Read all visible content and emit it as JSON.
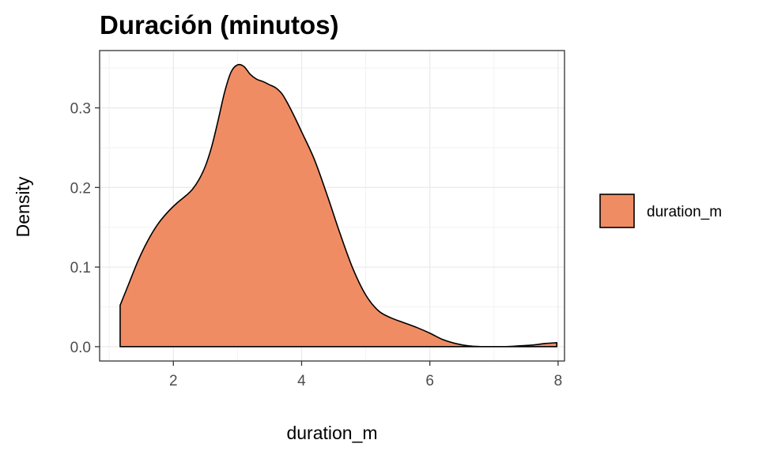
{
  "chart_data": {
    "type": "area",
    "title": "Duración (minutos)",
    "xlabel": "duration_m",
    "ylabel": "Density",
    "xlim": [
      0.85,
      8.1
    ],
    "ylim": [
      -0.018,
      0.372
    ],
    "x_ticks": [
      2,
      4,
      6,
      8
    ],
    "x_tick_labels": [
      "2",
      "4",
      "6",
      "8"
    ],
    "y_ticks": [
      0.0,
      0.1,
      0.2,
      0.3
    ],
    "y_tick_labels": [
      "0.0",
      "0.1",
      "0.2",
      "0.3"
    ],
    "grid": true,
    "legend_position": "right",
    "series": [
      {
        "name": "duration_m",
        "fill": "#F08C64",
        "stroke": "#000000",
        "x": [
          1.17,
          1.3,
          1.45,
          1.6,
          1.75,
          1.9,
          2.05,
          2.2,
          2.3,
          2.4,
          2.5,
          2.6,
          2.7,
          2.8,
          2.9,
          3.0,
          3.1,
          3.2,
          3.3,
          3.4,
          3.5,
          3.6,
          3.7,
          3.8,
          3.9,
          4.0,
          4.2,
          4.4,
          4.6,
          4.8,
          5.0,
          5.2,
          5.4,
          5.6,
          5.8,
          6.0,
          6.2,
          6.4,
          6.6,
          6.8,
          7.0,
          7.2,
          7.4,
          7.6,
          7.8,
          7.98
        ],
        "density": [
          0.052,
          0.078,
          0.108,
          0.133,
          0.153,
          0.168,
          0.18,
          0.19,
          0.198,
          0.21,
          0.227,
          0.252,
          0.285,
          0.32,
          0.345,
          0.354,
          0.352,
          0.342,
          0.336,
          0.333,
          0.329,
          0.325,
          0.317,
          0.303,
          0.287,
          0.27,
          0.235,
          0.19,
          0.142,
          0.098,
          0.065,
          0.045,
          0.036,
          0.03,
          0.024,
          0.017,
          0.009,
          0.004,
          0.001,
          0.0,
          0.0,
          0.0,
          0.001,
          0.002,
          0.004,
          0.005
        ]
      }
    ]
  }
}
